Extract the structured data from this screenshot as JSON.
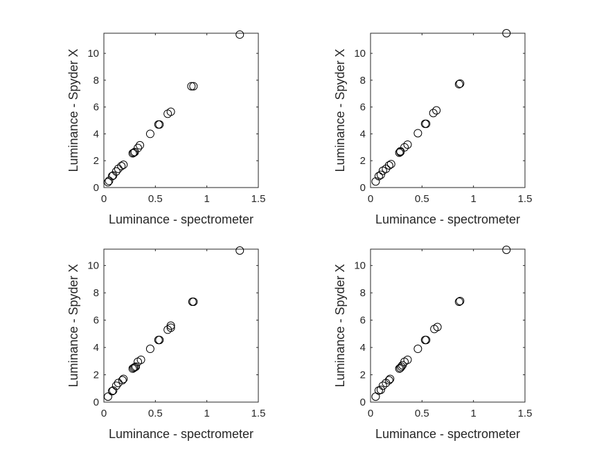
{
  "chart_data": [
    {
      "type": "scatter",
      "xlabel": "Luminance - spectrometer",
      "ylabel": "Luminance - Spyder X",
      "xlim": [
        0,
        1.5
      ],
      "ylim": [
        0,
        11.5
      ],
      "xticks": [
        "0",
        "0.5",
        "1",
        "1.5"
      ],
      "xtick_values": [
        0,
        0.5,
        1,
        1.5
      ],
      "yticks": [
        "0",
        "2",
        "4",
        "6",
        "8",
        "10"
      ],
      "ytick_values": [
        0,
        2,
        4,
        6,
        8,
        10
      ],
      "grid": false,
      "marker": "open-circle",
      "series": [
        {
          "x": [
            1.32,
            0.85,
            0.87,
            0.62,
            0.65,
            0.53,
            0.54,
            0.45,
            0.35,
            0.33,
            0.29,
            0.28,
            0.3,
            0.19,
            0.17,
            0.14,
            0.12,
            0.09,
            0.08,
            0.05,
            0.04
          ],
          "y": [
            11.4,
            7.55,
            7.55,
            5.5,
            5.65,
            4.7,
            4.7,
            4.0,
            3.15,
            2.95,
            2.6,
            2.55,
            2.65,
            1.7,
            1.6,
            1.4,
            1.2,
            0.9,
            0.85,
            0.5,
            0.4
          ]
        }
      ]
    },
    {
      "type": "scatter",
      "xlabel": "Luminance - spectrometer",
      "ylabel": "Luminance - Spyder X",
      "xlim": [
        0,
        1.5
      ],
      "ylim": [
        0,
        11.5
      ],
      "xticks": [
        "0",
        "0.5",
        "1",
        "1.5"
      ],
      "xtick_values": [
        0,
        0.5,
        1,
        1.5
      ],
      "yticks": [
        "0",
        "2",
        "4",
        "6",
        "8",
        "10"
      ],
      "ytick_values": [
        0,
        2,
        4,
        6,
        8,
        10
      ],
      "grid": false,
      "marker": "open-circle",
      "series": [
        {
          "x": [
            1.32,
            0.86,
            0.87,
            0.61,
            0.64,
            0.53,
            0.54,
            0.46,
            0.36,
            0.33,
            0.29,
            0.28,
            0.29,
            0.2,
            0.18,
            0.15,
            0.12,
            0.1,
            0.08,
            0.05
          ],
          "y": [
            11.5,
            7.7,
            7.75,
            5.55,
            5.75,
            4.75,
            4.75,
            4.05,
            3.2,
            3.0,
            2.7,
            2.6,
            2.65,
            1.75,
            1.65,
            1.4,
            1.25,
            0.95,
            0.85,
            0.45
          ]
        }
      ]
    },
    {
      "type": "scatter",
      "xlabel": "Luminance - spectrometer",
      "ylabel": "Luminance - Spyder X",
      "xlim": [
        0,
        1.5
      ],
      "ylim": [
        0,
        11.2
      ],
      "xticks": [
        "0",
        "0.5",
        "1",
        "1.5"
      ],
      "xtick_values": [
        0,
        0.5,
        1,
        1.5
      ],
      "yticks": [
        "0",
        "2",
        "4",
        "6",
        "8",
        "10"
      ],
      "ytick_values": [
        0,
        2,
        4,
        6,
        8,
        10
      ],
      "grid": false,
      "marker": "open-circle",
      "series": [
        {
          "x": [
            1.32,
            0.86,
            0.87,
            0.62,
            0.65,
            0.65,
            0.53,
            0.54,
            0.45,
            0.36,
            0.33,
            0.29,
            0.3,
            0.31,
            0.28,
            0.19,
            0.18,
            0.14,
            0.12,
            0.09,
            0.08,
            0.04
          ],
          "y": [
            11.1,
            7.35,
            7.35,
            5.3,
            5.45,
            5.6,
            4.55,
            4.55,
            3.9,
            3.1,
            2.95,
            2.5,
            2.55,
            2.6,
            2.45,
            1.7,
            1.6,
            1.4,
            1.2,
            0.85,
            0.8,
            0.4
          ]
        }
      ]
    },
    {
      "type": "scatter",
      "xlabel": "Luminance - spectrometer",
      "ylabel": "Luminance - Spyder X",
      "xlim": [
        0,
        1.5
      ],
      "ylim": [
        0,
        11.2
      ],
      "xticks": [
        "0",
        "0.5",
        "1",
        "1.5"
      ],
      "xtick_values": [
        0,
        0.5,
        1,
        1.5
      ],
      "yticks": [
        "0",
        "2",
        "4",
        "6",
        "8",
        "10"
      ],
      "ytick_values": [
        0,
        2,
        4,
        6,
        8,
        10
      ],
      "grid": false,
      "marker": "open-circle",
      "series": [
        {
          "x": [
            1.32,
            0.86,
            0.87,
            0.62,
            0.65,
            0.53,
            0.54,
            0.46,
            0.36,
            0.33,
            0.29,
            0.28,
            0.3,
            0.31,
            0.19,
            0.18,
            0.15,
            0.12,
            0.1,
            0.08,
            0.05
          ],
          "y": [
            11.15,
            7.35,
            7.4,
            5.35,
            5.5,
            4.55,
            4.55,
            3.9,
            3.1,
            2.95,
            2.5,
            2.45,
            2.6,
            2.7,
            1.7,
            1.6,
            1.4,
            1.2,
            0.9,
            0.85,
            0.4
          ]
        }
      ]
    }
  ]
}
